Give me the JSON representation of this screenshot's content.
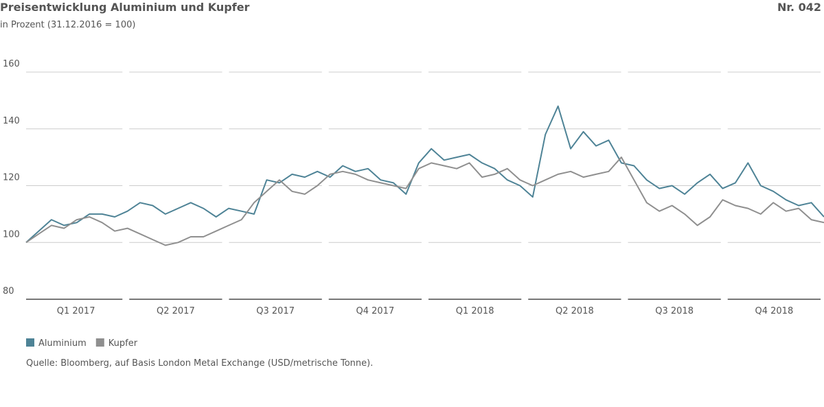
{
  "chart_data": {
    "type": "line",
    "title": "Preisentwicklung Aluminium und Kupfer",
    "number": "Nr. 042",
    "subtitle": "in Prozent (31.12.2016 = 100)",
    "source": "Quelle: Bloomberg, auf Basis London Metal Exchange (USD/metrische Tonne).",
    "quarters": [
      "Q1 2017",
      "Q2 2017",
      "Q3 2017",
      "Q4 2017",
      "Q1 2018",
      "Q2 2018",
      "Q3 2018",
      "Q4 2018"
    ],
    "ylim": [
      80,
      160
    ],
    "yticks": [
      80,
      100,
      120,
      140,
      160
    ],
    "grid": true,
    "series": [
      {
        "name": "Aluminium",
        "color": "#4e8396",
        "values": [
          100,
          104,
          108,
          106,
          107,
          110,
          110,
          109,
          111,
          114,
          113,
          110,
          112,
          114,
          112,
          109,
          112,
          111,
          110,
          122,
          121,
          124,
          123,
          125,
          123,
          127,
          125,
          126,
          122,
          121,
          117,
          128,
          133,
          129,
          130,
          131,
          128,
          126,
          122,
          120,
          116,
          138,
          148,
          133,
          139,
          134,
          136,
          128,
          127,
          122,
          119,
          120,
          117,
          121,
          124,
          119,
          121,
          128,
          120,
          118,
          115,
          113,
          114,
          109
        ]
      },
      {
        "name": "Kupfer",
        "color": "#8f8f8f",
        "values": [
          100,
          103,
          106,
          105,
          108,
          109,
          107,
          104,
          105,
          103,
          101,
          99,
          100,
          102,
          102,
          104,
          106,
          108,
          114,
          118,
          122,
          118,
          117,
          120,
          124,
          125,
          124,
          122,
          121,
          120,
          119,
          126,
          128,
          127,
          126,
          128,
          123,
          124,
          126,
          122,
          120,
          122,
          124,
          125,
          123,
          124,
          125,
          130,
          122,
          114,
          111,
          113,
          110,
          106,
          109,
          115,
          113,
          112,
          110,
          114,
          111,
          112,
          108,
          107
        ]
      }
    ]
  }
}
